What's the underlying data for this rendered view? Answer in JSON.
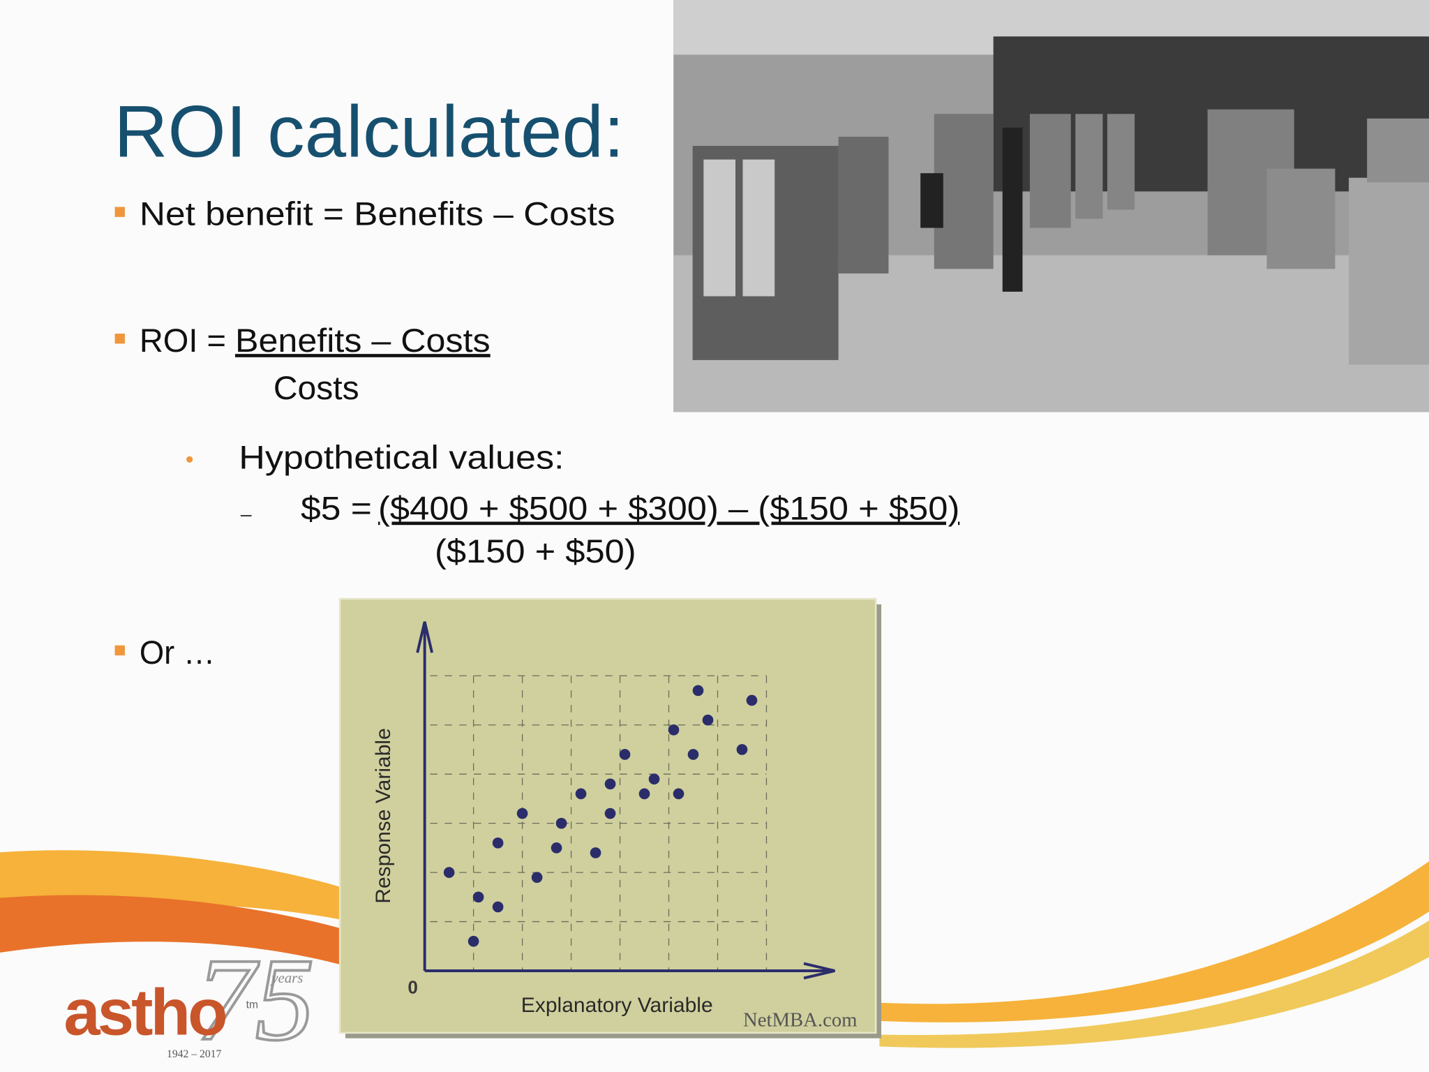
{
  "title": "ROI calculated:",
  "net_benefit": "Net benefit = Benefits – Costs",
  "roi": {
    "label": "ROI =",
    "numerator": "Benefits – Costs",
    "denominator": "Costs"
  },
  "hypothetical": {
    "heading": "Hypothetical values:",
    "lhs": "$5 =",
    "numerator": "($400 + $500 + $300) – ($150 + $50)",
    "denominator": "($150 + $50)"
  },
  "or": "Or …",
  "chart_data": {
    "type": "scatter",
    "x_label": "Explanatory Variable",
    "y_label": "Response Variable",
    "origin_label": 0,
    "credit": "NetMBA.com",
    "color": "#2b2d6b",
    "x": [
      0.5,
      1.1,
      1.0,
      1.5,
      1.5,
      2.0,
      2.3,
      2.7,
      2.8,
      3.2,
      3.5,
      3.8,
      3.8,
      4.1,
      4.5,
      4.7,
      5.1,
      5.2,
      5.5,
      5.6,
      5.8,
      6.5,
      6.7
    ],
    "values": [
      2.0,
      1.5,
      0.6,
      1.3,
      2.6,
      3.2,
      1.9,
      2.5,
      3.0,
      3.6,
      2.4,
      3.2,
      3.8,
      4.4,
      3.6,
      3.9,
      4.9,
      3.6,
      4.4,
      5.7,
      5.1,
      4.5,
      5.5
    ],
    "xlim": [
      0,
      8.4
    ],
    "ylim": [
      0,
      7.1
    ],
    "xgrid": [
      1,
      2,
      3,
      4,
      5,
      6,
      7
    ],
    "ygrid": [
      1,
      2,
      3,
      4,
      5,
      6
    ],
    "grid_style": "dashed"
  },
  "logo": {
    "name": "astho",
    "tm": "tm",
    "anniversary": "75",
    "years": "years",
    "dates": "1942 – 2017"
  }
}
